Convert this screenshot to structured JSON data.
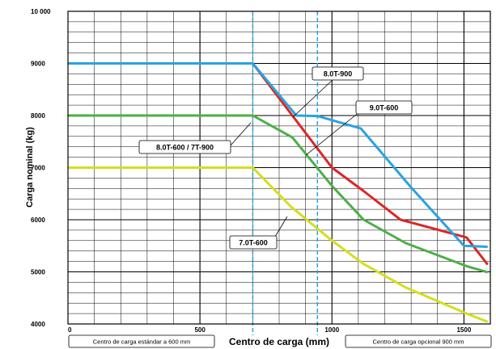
{
  "chart_data": {
    "type": "line",
    "xlabel": "Centro de carga (mm)",
    "ylabel": "Carga nominal (kg)",
    "xlim": [
      0,
      1600
    ],
    "ylim": [
      4000,
      10000
    ],
    "x_major_ticks": [
      {
        "value": 0,
        "label": "0"
      },
      {
        "value": 500,
        "label": "500"
      },
      {
        "value": 1000,
        "label": "1000"
      },
      {
        "value": 1500,
        "label": "1500"
      }
    ],
    "y_major_ticks": [
      {
        "value": 4000,
        "label": "4000"
      },
      {
        "value": 5000,
        "label": "5000"
      },
      {
        "value": 6000,
        "label": "6000"
      },
      {
        "value": 7000,
        "label": "7000"
      },
      {
        "value": 8000,
        "label": "8000"
      },
      {
        "value": 9000,
        "label": "9000"
      },
      {
        "value": 10000,
        "label": "10 000"
      }
    ],
    "grid": true,
    "series": [
      {
        "name": "8.0T-900",
        "color": "#29a3e0",
        "points": [
          [
            0,
            9000
          ],
          [
            700,
            9000
          ],
          [
            865,
            8000
          ],
          [
            945,
            7990
          ],
          [
            1110,
            7750
          ],
          [
            1300,
            6620
          ],
          [
            1500,
            5500
          ],
          [
            1590,
            5480
          ]
        ]
      },
      {
        "name": "9.0T-600",
        "color": "#dc2626",
        "points": [
          [
            0,
            9000
          ],
          [
            700,
            9000
          ],
          [
            850,
            8000
          ],
          [
            1000,
            7000
          ],
          [
            1120,
            6550
          ],
          [
            1260,
            6000
          ],
          [
            1510,
            5660
          ],
          [
            1590,
            5140
          ]
        ]
      },
      {
        "name": "8.0T-600 / 7T-900",
        "color": "#4caf46",
        "points": [
          [
            0,
            8000
          ],
          [
            700,
            8000
          ],
          [
            850,
            7580
          ],
          [
            1000,
            6650
          ],
          [
            1120,
            6000
          ],
          [
            1280,
            5550
          ],
          [
            1510,
            5110
          ],
          [
            1590,
            4990
          ]
        ]
      },
      {
        "name": "7.0T-600",
        "color": "#d4de1c",
        "points": [
          [
            0,
            7000
          ],
          [
            700,
            7000
          ],
          [
            845,
            6250
          ],
          [
            1000,
            5600
          ],
          [
            1120,
            5150
          ],
          [
            1280,
            4700
          ],
          [
            1510,
            4200
          ],
          [
            1590,
            4040
          ]
        ]
      }
    ],
    "reference_lines": [
      {
        "x": 700,
        "color": "#29a3e0",
        "style": "dashed",
        "label": "Centro de carga estándar a 600 mm"
      },
      {
        "x": 945,
        "color": "#29a3e0",
        "style": "dashed",
        "label": "Centro de carga opcional 900 mm"
      }
    ],
    "annotations": [
      {
        "text": "8.0T-900",
        "series": "8.0T-900"
      },
      {
        "text": "9.0T-600",
        "series": "9.0T-600"
      },
      {
        "text": "8.0T-600 / 7T-900",
        "series": "8.0T-600 / 7T-900"
      },
      {
        "text": "7.0T-600",
        "series": "7.0T-600"
      }
    ]
  }
}
